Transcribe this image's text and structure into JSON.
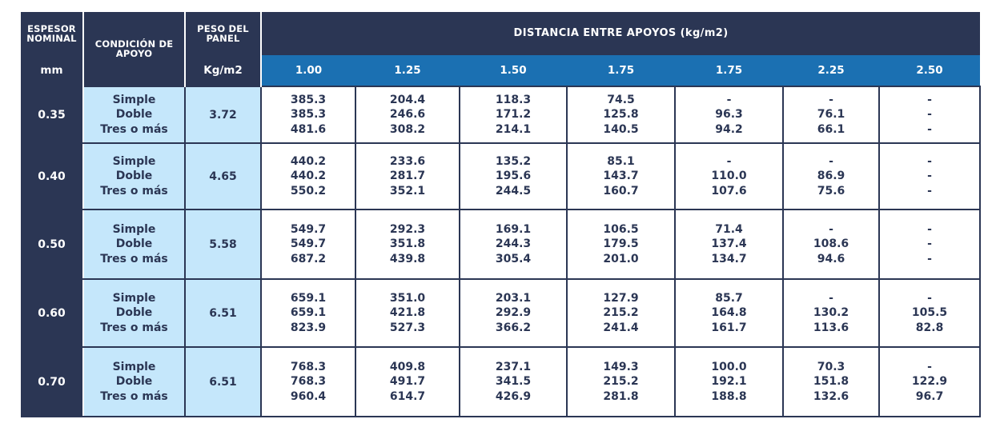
{
  "header": {
    "espesor": "ESPESOR NOMINAL",
    "espesor_unit": "mm",
    "condicion": "CONDICIÓN DE APOYO",
    "peso": "PESO DEL PANEL",
    "peso_unit": "Kg/m2",
    "distancia": "DISTANCIA ENTRE APOYOS (kg/m2)",
    "spans": [
      "1.00",
      "1.25",
      "1.50",
      "1.75",
      "1.75",
      "2.25",
      "2.50"
    ]
  },
  "conditions": [
    "Simple",
    "Doble",
    "Tres o más"
  ],
  "rows": [
    {
      "thickness": "0.35",
      "weight": "3.72",
      "values": [
        [
          "385.3",
          "385.3",
          "481.6"
        ],
        [
          "204.4",
          "246.6",
          "308.2"
        ],
        [
          "118.3",
          "171.2",
          "214.1"
        ],
        [
          "74.5",
          "125.8",
          "140.5"
        ],
        [
          "-",
          "96.3",
          "94.2"
        ],
        [
          "-",
          "76.1",
          "66.1"
        ],
        [
          "-",
          "-",
          "-"
        ]
      ]
    },
    {
      "thickness": "0.40",
      "weight": "4.65",
      "values": [
        [
          "440.2",
          "440.2",
          "550.2"
        ],
        [
          "233.6",
          "281.7",
          "352.1"
        ],
        [
          "135.2",
          "195.6",
          "244.5"
        ],
        [
          "85.1",
          "143.7",
          "160.7"
        ],
        [
          "-",
          "110.0",
          "107.6"
        ],
        [
          "-",
          "86.9",
          "75.6"
        ],
        [
          "-",
          "-",
          "-"
        ]
      ]
    },
    {
      "thickness": "0.50",
      "weight": "5.58",
      "values": [
        [
          "549.7",
          "549.7",
          "687.2"
        ],
        [
          "292.3",
          "351.8",
          "439.8"
        ],
        [
          "169.1",
          "244.3",
          "305.4"
        ],
        [
          "106.5",
          "179.5",
          "201.0"
        ],
        [
          "71.4",
          "137.4",
          "134.7"
        ],
        [
          "-",
          "108.6",
          "94.6"
        ],
        [
          "-",
          "-",
          "-"
        ]
      ]
    },
    {
      "thickness": "0.60",
      "weight": "6.51",
      "values": [
        [
          "659.1",
          "659.1",
          "823.9"
        ],
        [
          "351.0",
          "421.8",
          "527.3"
        ],
        [
          "203.1",
          "292.9",
          "366.2"
        ],
        [
          "127.9",
          "215.2",
          "241.4"
        ],
        [
          "85.7",
          "164.8",
          "161.7"
        ],
        [
          "-",
          "130.2",
          "113.6"
        ],
        [
          "-",
          "105.5",
          "82.8"
        ]
      ]
    },
    {
      "thickness": "0.70",
      "weight": "6.51",
      "values": [
        [
          "768.3",
          "768.3",
          "960.4"
        ],
        [
          "409.8",
          "491.7",
          "614.7"
        ],
        [
          "237.1",
          "341.5",
          "426.9"
        ],
        [
          "149.3",
          "215.2",
          "281.8"
        ],
        [
          "100.0",
          "192.1",
          "188.8"
        ],
        [
          "70.3",
          "151.8",
          "132.6"
        ],
        [
          "-",
          "122.9",
          "96.7"
        ]
      ]
    }
  ]
}
